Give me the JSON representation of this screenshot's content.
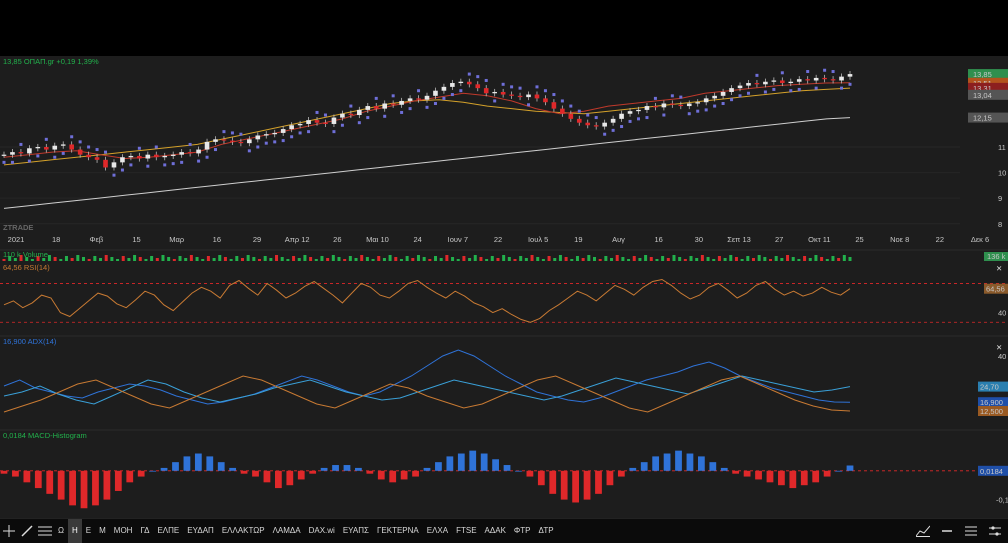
{
  "header": {
    "quote": "13,85 ΟΠΑΠ.gr +0,19 1,39%",
    "watermark": "ZTRADE"
  },
  "colors": {
    "background": "#1d1d1d",
    "up": "#22b14c",
    "down": "#e0282a",
    "price_box": "#2f8f4e",
    "rsi_line": "#c87a33",
    "adx_line": "#2f73d8",
    "macd_pos": "#2f73d8",
    "macd_neg": "#e0282a",
    "ma_long": "#cfcfcf",
    "ma_mid": "#d4a12a",
    "ma_short": "#c0392b",
    "sar": "#6f6fd8"
  },
  "chart_data": [
    {
      "type": "candlestick",
      "title": "ΟΠΑΠ.gr",
      "last_value": 13.85,
      "change": "+0,19",
      "change_pct": "1,39%",
      "ylim": [
        7.6,
        14.4
      ],
      "y_ticks": [
        {
          "value": 8,
          "label": "8"
        },
        {
          "value": 9,
          "label": "9"
        },
        {
          "value": 10,
          "label": "10"
        },
        {
          "value": 11,
          "label": "11"
        }
      ],
      "price_tags": [
        {
          "value": 13.85,
          "label": "13,85",
          "color": "#2f8f4e"
        },
        {
          "value": 13.51,
          "label": "13,51",
          "color": "#b2531d"
        },
        {
          "value": 13.31,
          "label": "13,31",
          "color": "#8c1f1f"
        },
        {
          "value": 13.04,
          "label": "13,04",
          "color": "#555555"
        },
        {
          "value": 12.15,
          "label": "12,15",
          "color": "#555555"
        }
      ],
      "x_ticks": [
        "2021",
        "18",
        "Φεβ",
        "15",
        "Μαρ",
        "16",
        "29",
        "Απρ 12",
        "26",
        "Μαι 10",
        "24",
        "Ιουν 7",
        "22",
        "Ιουλ 5",
        "19",
        "Αυγ",
        "16",
        "30",
        "Σεπ 13",
        "27",
        "Οκτ 11",
        "25",
        "Νοε 8",
        "22",
        "Δεκ 6"
      ],
      "closes": [
        10.7,
        10.8,
        10.75,
        10.95,
        11.0,
        10.9,
        11.05,
        11.1,
        10.9,
        10.7,
        10.6,
        10.5,
        10.2,
        10.4,
        10.6,
        10.65,
        10.55,
        10.7,
        10.6,
        10.65,
        10.7,
        10.8,
        10.75,
        10.9,
        11.2,
        11.3,
        11.25,
        11.2,
        11.15,
        11.3,
        11.45,
        11.5,
        11.55,
        11.7,
        11.85,
        11.9,
        12.05,
        11.95,
        11.9,
        12.15,
        12.3,
        12.25,
        12.45,
        12.6,
        12.5,
        12.7,
        12.65,
        12.8,
        12.9,
        12.85,
        13.0,
        13.2,
        13.35,
        13.5,
        13.55,
        13.45,
        13.3,
        13.1,
        13.15,
        13.05,
        13.0,
        12.95,
        13.05,
        12.9,
        12.75,
        12.5,
        12.3,
        12.1,
        11.95,
        11.85,
        11.8,
        11.95,
        12.1,
        12.3,
        12.4,
        12.45,
        12.6,
        12.55,
        12.7,
        12.65,
        12.6,
        12.7,
        12.75,
        12.9,
        13.0,
        13.15,
        13.3,
        13.4,
        13.5,
        13.45,
        13.55,
        13.6,
        13.5,
        13.55,
        13.65,
        13.6,
        13.7,
        13.65,
        13.6,
        13.75,
        13.85
      ],
      "overlays": [
        {
          "name": "MA long",
          "values": [
            8.6,
            8.7,
            8.8,
            8.9,
            9.0,
            9.1,
            9.2,
            9.3,
            9.4,
            9.5,
            9.6,
            9.7,
            9.8,
            9.9,
            10.0,
            10.1,
            10.2,
            10.3,
            10.4,
            10.5,
            10.6,
            10.7,
            10.8,
            10.9,
            11.0,
            11.1,
            11.2,
            11.3,
            11.4,
            11.5,
            11.6,
            11.7,
            11.8,
            11.9,
            12.0,
            12.1,
            12.15
          ]
        },
        {
          "name": "MA mid",
          "values": [
            10.3,
            10.4,
            10.5,
            10.6,
            10.7,
            10.8,
            10.9,
            11.0,
            11.1,
            11.3,
            11.5,
            11.7,
            11.9,
            12.1,
            12.3,
            12.5,
            12.7,
            12.8,
            12.85,
            12.75,
            12.6,
            12.5,
            12.4,
            12.35,
            12.3,
            12.4,
            12.5,
            12.6,
            12.7,
            12.8,
            12.9,
            13.0,
            13.1,
            13.2,
            13.25,
            13.3
          ]
        },
        {
          "name": "MA short",
          "values": [
            10.6,
            10.7,
            10.8,
            10.85,
            10.7,
            10.55,
            10.6,
            10.7,
            10.8,
            11.1,
            11.3,
            11.5,
            11.7,
            11.9,
            12.1,
            12.4,
            12.6,
            12.8,
            12.95,
            13.1,
            13.0,
            12.8,
            12.5,
            12.3,
            12.4,
            12.6,
            12.7,
            12.8,
            12.9,
            13.1,
            13.2,
            13.3,
            13.4,
            13.45,
            13.5,
            13.51
          ]
        }
      ]
    },
    {
      "type": "bar",
      "title": "110 k Volume",
      "last_value_label": "136 k",
      "ylim": [
        0,
        200
      ]
    },
    {
      "type": "line",
      "title": "64,56 RSI(14)",
      "last_value_label": "64,56",
      "ylim": [
        20,
        90
      ],
      "y_ticks": [
        {
          "value": 40,
          "label": "40"
        }
      ],
      "levels": [
        70,
        30
      ],
      "values": [
        48,
        52,
        45,
        50,
        58,
        55,
        40,
        36,
        44,
        52,
        60,
        57,
        49,
        45,
        53,
        62,
        58,
        48,
        42,
        51,
        60,
        66,
        62,
        55,
        68,
        73,
        65,
        58,
        70,
        63,
        55,
        60,
        67,
        72,
        65,
        58,
        50,
        60,
        70,
        66,
        58,
        55,
        62,
        70,
        73,
        66,
        60,
        55,
        62,
        57,
        50,
        46,
        40,
        44,
        38,
        33,
        30,
        34,
        42,
        48,
        55,
        62,
        58,
        52,
        60,
        68,
        64,
        58,
        66,
        72,
        74,
        68,
        60,
        54,
        58,
        66,
        70,
        63,
        55,
        60,
        68,
        72,
        64,
        58,
        62,
        57,
        60,
        66,
        61,
        58,
        64.56
      ]
    },
    {
      "type": "line",
      "title": "16,900 ADX(14)",
      "ylim": [
        5,
        45
      ],
      "y_ticks": [
        {
          "value": 40,
          "label": "40"
        }
      ],
      "series": [
        {
          "name": "ADX",
          "color": "#2f73d8",
          "label": "16,900",
          "values": [
            25,
            28,
            24,
            22,
            20,
            19,
            22,
            24,
            26,
            25,
            23,
            20,
            18,
            16,
            17,
            19,
            21,
            24,
            27,
            30,
            28,
            25,
            22,
            20,
            22,
            26,
            30,
            35,
            40,
            43,
            40,
            35,
            30,
            26,
            22,
            20,
            18,
            17,
            19,
            22,
            25,
            28,
            30,
            32,
            35,
            37,
            34,
            30,
            27,
            24,
            22,
            20,
            18,
            17,
            16.9
          ]
        },
        {
          "name": "+DI",
          "color": "#3aa0d8",
          "label": "24,70",
          "values": [
            20,
            22,
            25,
            21,
            18,
            16,
            20,
            24,
            28,
            26,
            22,
            19,
            17,
            19,
            21,
            24,
            26,
            28,
            25,
            22,
            20,
            18,
            19,
            22,
            25,
            28,
            26,
            24,
            22,
            20,
            18,
            20,
            23,
            26,
            29,
            27,
            25,
            23,
            21,
            24,
            27,
            30,
            28,
            26,
            24,
            22,
            23,
            24.7
          ]
        },
        {
          "name": "-DI",
          "color": "#c87a33",
          "label": "12,500",
          "values": [
            12,
            15,
            18,
            22,
            26,
            28,
            24,
            20,
            16,
            14,
            18,
            22,
            26,
            30,
            28,
            24,
            20,
            16,
            14,
            18,
            22,
            26,
            24,
            20,
            17,
            14,
            16,
            20,
            24,
            28,
            30,
            26,
            22,
            18,
            14,
            12,
            16,
            20,
            24,
            28,
            30,
            26,
            22,
            18,
            15,
            13,
            12.5
          ]
        }
      ]
    },
    {
      "type": "bar",
      "title": "0,0184 MACD-Histogram",
      "last_value_label": "0,0184",
      "ylim": [
        -0.15,
        0.1
      ],
      "y_ticks": [
        {
          "value": -0.1,
          "label": "-0,1"
        }
      ],
      "values": [
        -0.01,
        -0.02,
        -0.04,
        -0.06,
        -0.08,
        -0.1,
        -0.12,
        -0.13,
        -0.12,
        -0.1,
        -0.07,
        -0.04,
        -0.02,
        0.0,
        0.01,
        0.03,
        0.05,
        0.06,
        0.05,
        0.03,
        0.01,
        -0.01,
        -0.02,
        -0.04,
        -0.06,
        -0.05,
        -0.03,
        -0.01,
        0.01,
        0.02,
        0.02,
        0.01,
        -0.01,
        -0.03,
        -0.04,
        -0.03,
        -0.02,
        0.01,
        0.03,
        0.05,
        0.06,
        0.07,
        0.06,
        0.04,
        0.02,
        0.0,
        -0.02,
        -0.05,
        -0.08,
        -0.1,
        -0.11,
        -0.1,
        -0.08,
        -0.05,
        -0.02,
        0.01,
        0.03,
        0.05,
        0.06,
        0.07,
        0.06,
        0.05,
        0.03,
        0.01,
        -0.01,
        -0.02,
        -0.03,
        -0.04,
        -0.05,
        -0.06,
        -0.05,
        -0.04,
        -0.02,
        0.0,
        0.0184
      ]
    }
  ],
  "toolbar": {
    "periods": [
      "Ω",
      "Η",
      "Ε",
      "Μ"
    ],
    "active_period": "Η",
    "symbols": [
      "ΜΟΗ",
      "ΓΔ",
      "ΕΛΠΕ",
      "ΕΥΔΑΠ",
      "ΕΛΛΑΚΤΩΡ",
      "ΛΑΜΔΑ",
      "DAX.wi",
      "ΕΥΑΠΣ",
      "ΓΕΚΤΕΡΝΑ",
      "ΕΛΧΑ",
      "FTSE",
      "ΑΔΑΚ",
      "ΦΤΡ",
      "ΔΤΡ"
    ]
  }
}
